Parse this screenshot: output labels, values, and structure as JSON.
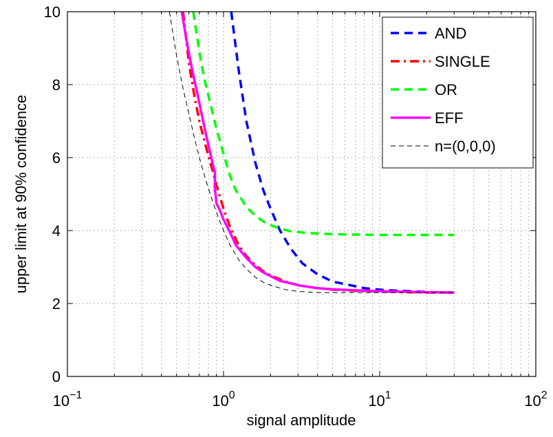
{
  "chart_data": {
    "type": "line",
    "title": "",
    "xlabel": "signal amplitude",
    "ylabel": "upper limit at 90% confidence",
    "xscale": "log",
    "xlim": [
      0.1,
      100
    ],
    "ylim": [
      0,
      10
    ],
    "grid": true,
    "legend_position": "top-right",
    "x_ticks": [
      {
        "value": 0.1,
        "base": "10",
        "exp": "−1"
      },
      {
        "value": 1,
        "base": "10",
        "exp": "0"
      },
      {
        "value": 10,
        "base": "10",
        "exp": "1"
      },
      {
        "value": 100,
        "base": "10",
        "exp": "2"
      }
    ],
    "y_ticks": [
      0,
      2,
      4,
      6,
      8,
      10
    ],
    "series": [
      {
        "name": "AND",
        "color": "#0000ff",
        "style": "dashed",
        "width": 3.5,
        "x": [
          1.12,
          1.25,
          1.4,
          1.6,
          1.8,
          2.0,
          2.3,
          2.7,
          3.2,
          4.0,
          5.0,
          6.5,
          8.0,
          10,
          13,
          17,
          22,
          30
        ],
        "y": [
          10,
          8.4,
          7.0,
          5.85,
          5.1,
          4.6,
          4.0,
          3.5,
          3.1,
          2.8,
          2.6,
          2.5,
          2.42,
          2.38,
          2.35,
          2.33,
          2.31,
          2.3
        ]
      },
      {
        "name": "SINGLE",
        "color": "#ff0000",
        "style": "dashdot",
        "width": 3.5,
        "x": [
          0.55,
          0.6,
          0.65,
          0.7,
          0.75,
          0.8,
          0.85,
          0.9,
          1.0,
          1.1,
          1.25,
          1.4,
          1.6,
          1.8,
          2.0,
          2.5,
          3.0,
          4.0,
          5.0,
          7.0,
          10,
          15,
          20,
          30
        ],
        "y": [
          10,
          8.6,
          7.7,
          7.0,
          6.5,
          6.05,
          5.65,
          5.25,
          4.6,
          4.1,
          3.6,
          3.3,
          3.05,
          2.88,
          2.77,
          2.6,
          2.5,
          2.42,
          2.38,
          2.35,
          2.33,
          2.31,
          2.3,
          2.3
        ]
      },
      {
        "name": "OR",
        "color": "#00ff00",
        "style": "dashed",
        "width": 3.5,
        "x": [
          0.64,
          0.7,
          0.75,
          0.8,
          0.9,
          1.0,
          1.1,
          1.2,
          1.4,
          1.6,
          1.8,
          2.0,
          2.3,
          2.7,
          3.5,
          5.0,
          7.0,
          10,
          15,
          20,
          30
        ],
        "y": [
          10,
          8.9,
          8.2,
          7.7,
          6.8,
          6.1,
          5.5,
          5.1,
          4.65,
          4.4,
          4.25,
          4.15,
          4.05,
          3.98,
          3.93,
          3.9,
          3.89,
          3.88,
          3.88,
          3.88,
          3.88
        ]
      },
      {
        "name": "EFF",
        "color": "#ff00ff",
        "style": "solid",
        "width": 3.5,
        "x": [
          0.54,
          0.58,
          0.62,
          0.66,
          0.7,
          0.74,
          0.78,
          0.82,
          0.86,
          0.88,
          0.88,
          0.89,
          0.9,
          0.95,
          1.0,
          1.1,
          1.2,
          1.4,
          1.6,
          1.8,
          2.0,
          2.3,
          2.7,
          3.2,
          4.0,
          5.0,
          7.0,
          10,
          15,
          20,
          30
        ],
        "y": [
          10,
          9.2,
          8.55,
          8.0,
          7.5,
          7.0,
          6.55,
          6.15,
          5.75,
          5.6,
          5.1,
          5.0,
          4.75,
          4.55,
          4.3,
          3.95,
          3.6,
          3.25,
          3.0,
          2.85,
          2.75,
          2.62,
          2.55,
          2.48,
          2.42,
          2.39,
          2.36,
          2.34,
          2.32,
          2.31,
          2.3
        ]
      },
      {
        "name": "n=(0,0,0)",
        "color": "#000000",
        "style": "thin-dashed",
        "width": 1,
        "x": [
          0.45,
          0.5,
          0.55,
          0.6,
          0.65,
          0.7,
          0.75,
          0.8,
          0.9,
          1.0,
          1.1,
          1.25,
          1.4,
          1.6,
          1.8,
          2.0,
          2.5,
          3.0,
          4.0,
          5.0,
          7.0,
          10,
          20,
          30
        ],
        "y": [
          10,
          8.8,
          7.9,
          7.2,
          6.55,
          6.0,
          5.55,
          5.15,
          4.5,
          4.0,
          3.6,
          3.2,
          2.95,
          2.72,
          2.58,
          2.5,
          2.38,
          2.33,
          2.3,
          2.3,
          2.3,
          2.3,
          2.3,
          2.3
        ]
      }
    ]
  }
}
